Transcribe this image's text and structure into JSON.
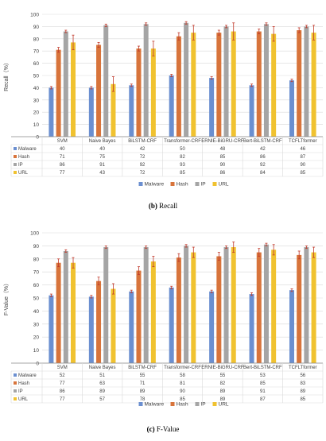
{
  "colors": {
    "Malware": "#6b8fd0",
    "Hash": "#d8743b",
    "IP": "#a5a5a5",
    "URL": "#f0c230",
    "err": "#c0392b",
    "grid": "#d9d9d9",
    "axis": "#888888",
    "text": "#404040"
  },
  "chart_data": [
    {
      "type": "bar",
      "ylabel": "Recall（%）",
      "ylim": [
        0,
        100
      ],
      "yticks": [
        0,
        10,
        20,
        30,
        40,
        50,
        60,
        70,
        80,
        90,
        100
      ],
      "grid": true,
      "legend_position": "bottom",
      "caption_label": "(b)",
      "caption_text": "Recall",
      "categories": [
        "SVM",
        "Naive Bayes",
        "BiLSTM-CRF",
        "Transformer-CRF",
        "ERNIE-BiGRU-CRF",
        "Bert-BiLSTM-CRF",
        "TCFLTformer"
      ],
      "series": [
        {
          "name": "Malware",
          "values": [
            40,
            40,
            42,
            50,
            48,
            42,
            46
          ],
          "errors": [
            1,
            1,
            1,
            1,
            1,
            1,
            1
          ]
        },
        {
          "name": "Hash",
          "values": [
            71,
            75,
            72,
            82,
            85,
            86,
            87
          ],
          "errors": [
            2,
            2,
            2,
            3,
            2,
            2,
            2
          ]
        },
        {
          "name": "IP",
          "values": [
            86,
            91,
            92,
            93,
            90,
            92,
            90
          ],
          "errors": [
            1,
            1,
            1,
            1,
            1,
            1,
            1
          ]
        },
        {
          "name": "URL",
          "values": [
            77,
            43,
            72,
            85,
            86,
            84,
            85
          ],
          "errors": [
            6,
            6,
            6,
            6,
            7,
            6,
            6
          ]
        }
      ]
    },
    {
      "type": "bar",
      "ylabel": "F-Value（%）",
      "ylim": [
        0,
        100
      ],
      "yticks": [
        0,
        10,
        20,
        30,
        40,
        50,
        60,
        70,
        80,
        90,
        100
      ],
      "grid": true,
      "legend_position": "bottom",
      "caption_label": "(c)",
      "caption_text": "F-Value",
      "categories": [
        "SVM",
        "Naive Bayes",
        "BiLSTM-CRF",
        "Transformer-CRF",
        "ERNIE-BiGRU-CRF",
        "Bert-BiLSTM-CRF",
        "TCFLTformer"
      ],
      "series": [
        {
          "name": "Malware",
          "values": [
            52,
            51,
            55,
            58,
            55,
            53,
            56
          ],
          "errors": [
            1,
            1,
            1,
            1,
            1,
            1,
            1
          ]
        },
        {
          "name": "Hash",
          "values": [
            77,
            63,
            71,
            81,
            82,
            85,
            83
          ],
          "errors": [
            3,
            3,
            3,
            3,
            3,
            3,
            3
          ]
        },
        {
          "name": "IP",
          "values": [
            86,
            89,
            89,
            90,
            89,
            91,
            89
          ],
          "errors": [
            1,
            1,
            1,
            1,
            1,
            1,
            1
          ]
        },
        {
          "name": "URL",
          "values": [
            77,
            57,
            78,
            85,
            89,
            87,
            85
          ],
          "errors": [
            4,
            4,
            4,
            4,
            4,
            4,
            4
          ]
        }
      ]
    }
  ]
}
